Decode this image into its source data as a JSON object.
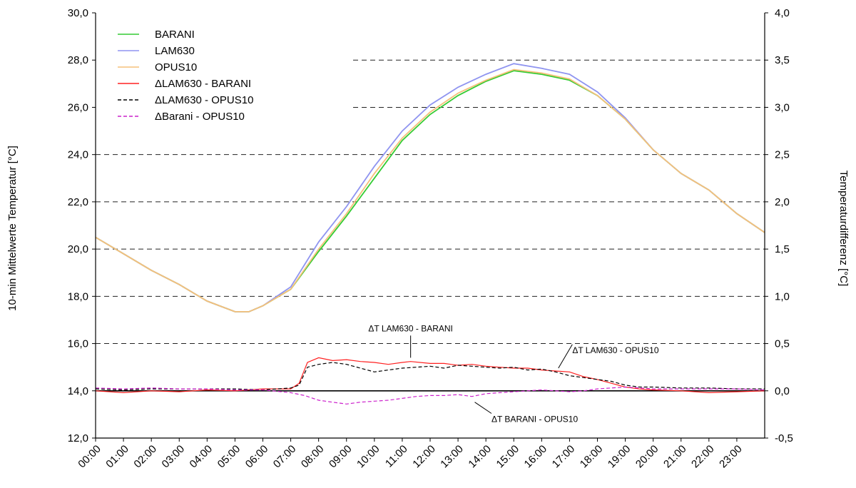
{
  "chart_data": {
    "type": "line",
    "y_left": {
      "label": "10-min Mittelwerte Temperatur [°C]",
      "range": [
        12.0,
        30.0
      ],
      "ticks": [
        "30,0",
        "28,0",
        "26,0",
        "24,0",
        "22,0",
        "20,0",
        "18,0",
        "16,0",
        "14,0",
        "12,0"
      ]
    },
    "y_right": {
      "label": "Temperaturdifferenz [°C]",
      "range": [
        -0.5,
        4.0
      ],
      "ticks": [
        "4,0",
        "3,5",
        "3,0",
        "2,5",
        "2,0",
        "1,5",
        "1,0",
        "0,5",
        "0,0",
        "-0,5"
      ]
    },
    "x": {
      "label": "",
      "range_hours": [
        0,
        24
      ],
      "ticks": [
        "00:00",
        "01:00",
        "02:00",
        "03:00",
        "04:00",
        "05:00",
        "06:00",
        "07:00",
        "08:00",
        "09:00",
        "10:00",
        "11:00",
        "12:00",
        "13:00",
        "14:00",
        "15:00",
        "16:00",
        "17:00",
        "18:00",
        "19:00",
        "20:00",
        "21:00",
        "22:00",
        "23:00"
      ]
    },
    "grid": {
      "style": "dashed-horizontal",
      "values_left": [
        16,
        18,
        20,
        22,
        24,
        26,
        28
      ]
    },
    "legend_placement": "top-left",
    "legend": [
      {
        "label": "BARANI",
        "color": "#33cc33",
        "dash": "solid"
      },
      {
        "label": "LAM630",
        "color": "#8f94f0",
        "dash": "solid"
      },
      {
        "label": "OPUS10",
        "color": "#f5c07a",
        "dash": "solid"
      },
      {
        "label": "ΔLAM630 - BARANI",
        "color": "#ff2020",
        "dash": "solid"
      },
      {
        "label": "ΔLAM630 - OPUS10",
        "color": "#000000",
        "dash": "dashed"
      },
      {
        "label": "ΔBarani - OPUS10",
        "color": "#cc22cc",
        "dash": "dashed"
      }
    ],
    "series": [
      {
        "name": "BARANI",
        "axis": "left",
        "color": "#33cc33",
        "dash": "solid",
        "points": [
          [
            0,
            20.5
          ],
          [
            1,
            19.8
          ],
          [
            2,
            19.1
          ],
          [
            3,
            18.5
          ],
          [
            4,
            17.8
          ],
          [
            5,
            17.35
          ],
          [
            5.5,
            17.35
          ],
          [
            6,
            17.6
          ],
          [
            7,
            18.3
          ],
          [
            8,
            19.9
          ],
          [
            9,
            21.4
          ],
          [
            10,
            23.0
          ],
          [
            11,
            24.6
          ],
          [
            12,
            25.7
          ],
          [
            13,
            26.5
          ],
          [
            14,
            27.1
          ],
          [
            15,
            27.55
          ],
          [
            16,
            27.4
          ],
          [
            17,
            27.15
          ],
          [
            18,
            26.5
          ],
          [
            19,
            25.5
          ],
          [
            20,
            24.2
          ],
          [
            21,
            23.2
          ],
          [
            22,
            22.5
          ],
          [
            23,
            21.5
          ],
          [
            24,
            20.7
          ]
        ]
      },
      {
        "name": "LAM630",
        "axis": "left",
        "color": "#8f94f0",
        "dash": "solid",
        "points": [
          [
            0,
            20.5
          ],
          [
            1,
            19.8
          ],
          [
            2,
            19.1
          ],
          [
            3,
            18.5
          ],
          [
            4,
            17.8
          ],
          [
            5,
            17.35
          ],
          [
            5.5,
            17.35
          ],
          [
            6,
            17.6
          ],
          [
            7,
            18.4
          ],
          [
            8,
            20.3
          ],
          [
            9,
            21.8
          ],
          [
            10,
            23.5
          ],
          [
            11,
            25.0
          ],
          [
            12,
            26.1
          ],
          [
            13,
            26.85
          ],
          [
            14,
            27.4
          ],
          [
            15,
            27.85
          ],
          [
            16,
            27.65
          ],
          [
            17,
            27.4
          ],
          [
            18,
            26.65
          ],
          [
            19,
            25.55
          ],
          [
            20,
            24.2
          ],
          [
            21,
            23.2
          ],
          [
            22,
            22.5
          ],
          [
            23,
            21.5
          ],
          [
            24,
            20.7
          ]
        ]
      },
      {
        "name": "OPUS10",
        "axis": "left",
        "color": "#f5c07a",
        "dash": "solid",
        "points": [
          [
            0,
            20.5
          ],
          [
            1,
            19.8
          ],
          [
            2,
            19.1
          ],
          [
            3,
            18.5
          ],
          [
            4,
            17.8
          ],
          [
            5,
            17.35
          ],
          [
            5.5,
            17.35
          ],
          [
            6,
            17.6
          ],
          [
            7,
            18.3
          ],
          [
            8,
            20.0
          ],
          [
            9,
            21.5
          ],
          [
            10,
            23.2
          ],
          [
            11,
            24.7
          ],
          [
            12,
            25.8
          ],
          [
            13,
            26.6
          ],
          [
            14,
            27.15
          ],
          [
            15,
            27.6
          ],
          [
            16,
            27.45
          ],
          [
            17,
            27.2
          ],
          [
            18,
            26.5
          ],
          [
            19,
            25.5
          ],
          [
            20,
            24.2
          ],
          [
            21,
            23.2
          ],
          [
            22,
            22.5
          ],
          [
            23,
            21.5
          ],
          [
            24,
            20.7
          ]
        ]
      },
      {
        "name": "ΔLAM630 - BARANI",
        "axis": "right",
        "color": "#ff2020",
        "dash": "solid",
        "points": [
          [
            0,
            0.0
          ],
          [
            1,
            -0.02
          ],
          [
            2,
            0.0
          ],
          [
            3,
            -0.01
          ],
          [
            4,
            0.01
          ],
          [
            5,
            0.0
          ],
          [
            6,
            0.02
          ],
          [
            7,
            0.02
          ],
          [
            7.3,
            0.08
          ],
          [
            7.6,
            0.3
          ],
          [
            8,
            0.35
          ],
          [
            8.5,
            0.32
          ],
          [
            9,
            0.33
          ],
          [
            9.5,
            0.31
          ],
          [
            10,
            0.3
          ],
          [
            10.5,
            0.28
          ],
          [
            11,
            0.3
          ],
          [
            11.3,
            0.31
          ],
          [
            12,
            0.29
          ],
          [
            12.5,
            0.29
          ],
          [
            13,
            0.27
          ],
          [
            13.5,
            0.28
          ],
          [
            14,
            0.26
          ],
          [
            14.5,
            0.25
          ],
          [
            15,
            0.24
          ],
          [
            15.5,
            0.24
          ],
          [
            16,
            0.22
          ],
          [
            16.5,
            0.21
          ],
          [
            17,
            0.2
          ],
          [
            17.5,
            0.15
          ],
          [
            18,
            0.12
          ],
          [
            18.5,
            0.08
          ],
          [
            19,
            0.04
          ],
          [
            19.5,
            0.02
          ],
          [
            20,
            0.01
          ],
          [
            21,
            0.0
          ],
          [
            22,
            -0.02
          ],
          [
            23,
            -0.01
          ],
          [
            24,
            0.0
          ]
        ]
      },
      {
        "name": "ΔLAM630 - OPUS10",
        "axis": "right",
        "color": "#000000",
        "dash": "dashed",
        "points": [
          [
            0,
            0.02
          ],
          [
            1,
            0.01
          ],
          [
            2,
            0.02
          ],
          [
            3,
            0.02
          ],
          [
            4,
            0.02
          ],
          [
            5,
            0.02
          ],
          [
            6,
            0.01
          ],
          [
            7,
            0.03
          ],
          [
            7.3,
            0.06
          ],
          [
            7.6,
            0.25
          ],
          [
            8,
            0.28
          ],
          [
            8.5,
            0.3
          ],
          [
            9,
            0.28
          ],
          [
            9.5,
            0.24
          ],
          [
            10,
            0.2
          ],
          [
            10.5,
            0.22
          ],
          [
            11,
            0.24
          ],
          [
            11.5,
            0.25
          ],
          [
            12,
            0.26
          ],
          [
            12.5,
            0.24
          ],
          [
            13,
            0.27
          ],
          [
            13.5,
            0.26
          ],
          [
            14,
            0.25
          ],
          [
            14.5,
            0.24
          ],
          [
            15,
            0.25
          ],
          [
            15.5,
            0.22
          ],
          [
            16,
            0.23
          ],
          [
            16.5,
            0.2
          ],
          [
            17,
            0.16
          ],
          [
            17.5,
            0.14
          ],
          [
            18,
            0.12
          ],
          [
            18.5,
            0.1
          ],
          [
            19,
            0.06
          ],
          [
            19.5,
            0.04
          ],
          [
            20,
            0.04
          ],
          [
            21,
            0.03
          ],
          [
            22,
            0.03
          ],
          [
            23,
            0.02
          ],
          [
            24,
            0.02
          ]
        ]
      },
      {
        "name": "ΔBarani - OPUS10",
        "axis": "right",
        "color": "#cc22cc",
        "dash": "dashed",
        "points": [
          [
            0,
            0.03
          ],
          [
            1,
            0.02
          ],
          [
            2,
            0.03
          ],
          [
            3,
            0.02
          ],
          [
            4,
            0.02
          ],
          [
            5,
            0.01
          ],
          [
            6,
            0.01
          ],
          [
            7,
            -0.02
          ],
          [
            7.5,
            -0.05
          ],
          [
            8,
            -0.1
          ],
          [
            8.5,
            -0.12
          ],
          [
            9,
            -0.14
          ],
          [
            9.5,
            -0.12
          ],
          [
            10,
            -0.11
          ],
          [
            10.5,
            -0.1
          ],
          [
            11,
            -0.08
          ],
          [
            11.5,
            -0.06
          ],
          [
            12,
            -0.05
          ],
          [
            12.5,
            -0.05
          ],
          [
            13,
            -0.04
          ],
          [
            13.5,
            -0.06
          ],
          [
            14,
            -0.03
          ],
          [
            14.5,
            -0.02
          ],
          [
            15,
            -0.01
          ],
          [
            15.5,
            0.0
          ],
          [
            16,
            0.01
          ],
          [
            16.5,
            0.0
          ],
          [
            17,
            -0.01
          ],
          [
            17.5,
            0.0
          ],
          [
            18,
            0.02
          ],
          [
            18.5,
            0.03
          ],
          [
            19,
            0.04
          ],
          [
            19.5,
            0.03
          ],
          [
            20,
            0.02
          ],
          [
            21,
            0.02
          ],
          [
            22,
            0.02
          ],
          [
            23,
            0.02
          ],
          [
            24,
            0.01
          ]
        ]
      }
    ],
    "annotations": [
      {
        "text": "ΔT LAM630 - BARANI",
        "label_at": [
          11.3,
          0.63
        ],
        "arrow_to": [
          11.3,
          0.35
        ],
        "anchor": "middle",
        "above": true
      },
      {
        "text": "ΔT LAM630 - OPUS10",
        "label_at": [
          17.1,
          0.4
        ],
        "arrow_to": [
          16.6,
          0.24
        ],
        "anchor": "start",
        "above": false
      },
      {
        "text": "ΔT BARANI - OPUS10",
        "label_at": [
          14.2,
          -0.33
        ],
        "arrow_to": [
          13.6,
          -0.12
        ],
        "anchor": "start",
        "above": false
      }
    ]
  }
}
